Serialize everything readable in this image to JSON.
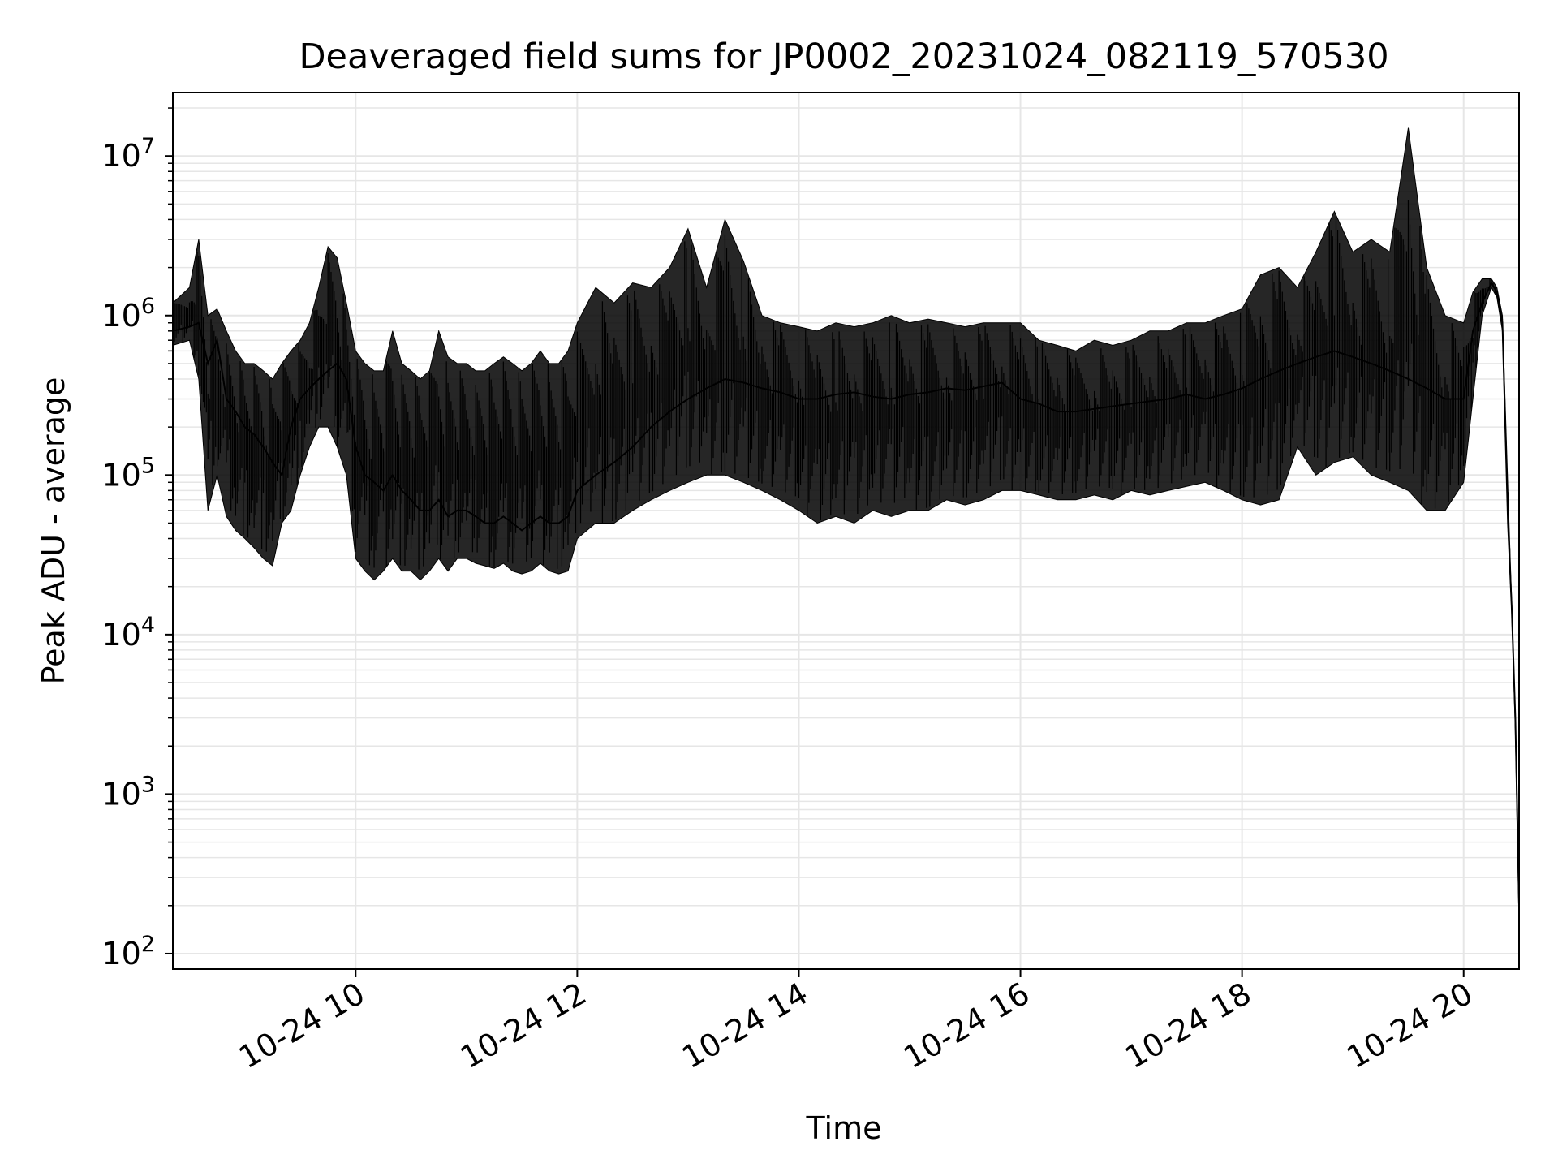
{
  "chart_data": {
    "type": "line",
    "title": "Deaveraged field sums for JP0002_20231024_082119_570530",
    "xlabel": "Time",
    "ylabel": "Peak ADU - average",
    "xlim": [
      "2023-10-24 08:21",
      "2023-10-24 20:30"
    ],
    "ylim": [
      80,
      25000000
    ],
    "yscale": "log",
    "x_ticks": [
      {
        "t": "2023-10-24 10:00",
        "label": "10-24 10"
      },
      {
        "t": "2023-10-24 12:00",
        "label": "10-24 12"
      },
      {
        "t": "2023-10-24 14:00",
        "label": "10-24 14"
      },
      {
        "t": "2023-10-24 16:00",
        "label": "10-24 16"
      },
      {
        "t": "2023-10-24 18:00",
        "label": "10-24 18"
      },
      {
        "t": "2023-10-24 20:00",
        "label": "10-24 20"
      }
    ],
    "y_ticks": [
      {
        "v": 100,
        "base": "10",
        "exp": "2"
      },
      {
        "v": 1000,
        "base": "10",
        "exp": "3"
      },
      {
        "v": 10000,
        "base": "10",
        "exp": "4"
      },
      {
        "v": 100000,
        "base": "10",
        "exp": "5"
      },
      {
        "v": 1000000,
        "base": "10",
        "exp": "6"
      },
      {
        "v": 10000000,
        "base": "10",
        "exp": "7"
      }
    ],
    "grid": true,
    "line_color": "#000000",
    "grid_color": "#e6e6e6",
    "series": [
      {
        "x": [
          "2023-10-24 08:21",
          "2023-10-24 08:30",
          "2023-10-24 08:35",
          "2023-10-24 08:40",
          "2023-10-24 08:45",
          "2023-10-24 08:50",
          "2023-10-24 08:55",
          "2023-10-24 09:00",
          "2023-10-24 09:05",
          "2023-10-24 09:10",
          "2023-10-24 09:15",
          "2023-10-24 09:20",
          "2023-10-24 09:25",
          "2023-10-24 09:30",
          "2023-10-24 09:35",
          "2023-10-24 09:40",
          "2023-10-24 09:45",
          "2023-10-24 09:50",
          "2023-10-24 09:55",
          "2023-10-24 10:00",
          "2023-10-24 10:05",
          "2023-10-24 10:10",
          "2023-10-24 10:15",
          "2023-10-24 10:20",
          "2023-10-24 10:25",
          "2023-10-24 10:30",
          "2023-10-24 10:35",
          "2023-10-24 10:40",
          "2023-10-24 10:45",
          "2023-10-24 10:50",
          "2023-10-24 10:55",
          "2023-10-24 11:00",
          "2023-10-24 11:05",
          "2023-10-24 11:10",
          "2023-10-24 11:15",
          "2023-10-24 11:20",
          "2023-10-24 11:25",
          "2023-10-24 11:30",
          "2023-10-24 11:35",
          "2023-10-24 11:40",
          "2023-10-24 11:45",
          "2023-10-24 11:50",
          "2023-10-24 11:55",
          "2023-10-24 12:00",
          "2023-10-24 12:10",
          "2023-10-24 12:20",
          "2023-10-24 12:30",
          "2023-10-24 12:40",
          "2023-10-24 12:50",
          "2023-10-24 13:00",
          "2023-10-24 13:10",
          "2023-10-24 13:20",
          "2023-10-24 13:30",
          "2023-10-24 13:40",
          "2023-10-24 13:50",
          "2023-10-24 14:00",
          "2023-10-24 14:10",
          "2023-10-24 14:20",
          "2023-10-24 14:30",
          "2023-10-24 14:40",
          "2023-10-24 14:50",
          "2023-10-24 15:00",
          "2023-10-24 15:10",
          "2023-10-24 15:20",
          "2023-10-24 15:30",
          "2023-10-24 15:40",
          "2023-10-24 15:50",
          "2023-10-24 16:00",
          "2023-10-24 16:10",
          "2023-10-24 16:20",
          "2023-10-24 16:30",
          "2023-10-24 16:40",
          "2023-10-24 16:50",
          "2023-10-24 17:00",
          "2023-10-24 17:10",
          "2023-10-24 17:20",
          "2023-10-24 17:30",
          "2023-10-24 17:40",
          "2023-10-24 17:50",
          "2023-10-24 18:00",
          "2023-10-24 18:10",
          "2023-10-24 18:20",
          "2023-10-24 18:30",
          "2023-10-24 18:40",
          "2023-10-24 18:50",
          "2023-10-24 19:00",
          "2023-10-24 19:10",
          "2023-10-24 19:20",
          "2023-10-24 19:30",
          "2023-10-24 19:40",
          "2023-10-24 19:50",
          "2023-10-24 20:00",
          "2023-10-24 20:05",
          "2023-10-24 20:10",
          "2023-10-24 20:15",
          "2023-10-24 20:18",
          "2023-10-24 20:21",
          "2023-10-24 20:24",
          "2023-10-24 20:26",
          "2023-10-24 20:28",
          "2023-10-24 20:30"
        ],
        "median": [
          800000,
          850000,
          900000,
          500000,
          700000,
          300000,
          250000,
          200000,
          180000,
          150000,
          120000,
          100000,
          200000,
          300000,
          350000,
          400000,
          450000,
          500000,
          400000,
          150000,
          100000,
          90000,
          80000,
          100000,
          80000,
          70000,
          60000,
          60000,
          70000,
          55000,
          60000,
          60000,
          55000,
          50000,
          50000,
          55000,
          50000,
          45000,
          50000,
          55000,
          50000,
          50000,
          55000,
          80000,
          100000,
          120000,
          150000,
          200000,
          250000,
          300000,
          350000,
          400000,
          380000,
          350000,
          330000,
          300000,
          300000,
          320000,
          330000,
          310000,
          300000,
          320000,
          330000,
          350000,
          340000,
          360000,
          380000,
          300000,
          280000,
          250000,
          250000,
          260000,
          270000,
          280000,
          290000,
          300000,
          320000,
          300000,
          320000,
          350000,
          400000,
          450000,
          500000,
          550000,
          600000,
          550000,
          500000,
          450000,
          400000,
          350000,
          300000,
          300000,
          800000,
          1200000,
          1600000,
          1400000,
          900000,
          50000,
          15000,
          3000,
          200
        ],
        "max": [
          1200000,
          1500000,
          3000000,
          1000000,
          1100000,
          800000,
          600000,
          500000,
          500000,
          450000,
          400000,
          500000,
          600000,
          700000,
          900000,
          1500000,
          2700000,
          2300000,
          1200000,
          600000,
          500000,
          450000,
          450000,
          800000,
          500000,
          450000,
          400000,
          450000,
          800000,
          550000,
          500000,
          500000,
          450000,
          450000,
          500000,
          550000,
          500000,
          450000,
          500000,
          600000,
          500000,
          500000,
          600000,
          900000,
          1500000,
          1200000,
          1600000,
          1500000,
          2000000,
          3500000,
          1500000,
          4000000,
          2200000,
          1000000,
          900000,
          850000,
          800000,
          900000,
          850000,
          900000,
          1000000,
          900000,
          950000,
          900000,
          850000,
          900000,
          900000,
          900000,
          700000,
          650000,
          600000,
          700000,
          650000,
          700000,
          800000,
          800000,
          900000,
          900000,
          1000000,
          1100000,
          1800000,
          2000000,
          1500000,
          2500000,
          4500000,
          2500000,
          3000000,
          2500000,
          15000000,
          2000000,
          1000000,
          900000,
          1400000,
          1700000,
          1700000,
          1500000,
          1000000,
          80000,
          16000,
          3000,
          200
        ],
        "min": [
          650000,
          700000,
          400000,
          60000,
          100000,
          55000,
          45000,
          40000,
          35000,
          30000,
          27000,
          50000,
          60000,
          100000,
          150000,
          200000,
          200000,
          150000,
          100000,
          30000,
          25000,
          22000,
          25000,
          30000,
          25000,
          25000,
          22000,
          25000,
          30000,
          25000,
          30000,
          30000,
          28000,
          27000,
          26000,
          28000,
          25000,
          24000,
          25000,
          28000,
          25000,
          24000,
          25000,
          40000,
          50000,
          50000,
          60000,
          70000,
          80000,
          90000,
          100000,
          100000,
          90000,
          80000,
          70000,
          60000,
          50000,
          55000,
          50000,
          60000,
          55000,
          60000,
          60000,
          70000,
          65000,
          70000,
          80000,
          80000,
          75000,
          70000,
          70000,
          75000,
          70000,
          80000,
          75000,
          80000,
          85000,
          90000,
          80000,
          70000,
          65000,
          70000,
          150000,
          100000,
          120000,
          130000,
          100000,
          90000,
          80000,
          60000,
          60000,
          90000,
          300000,
          1000000,
          1500000,
          1300000,
          800000,
          50000,
          14000,
          2500,
          150
        ]
      }
    ]
  }
}
